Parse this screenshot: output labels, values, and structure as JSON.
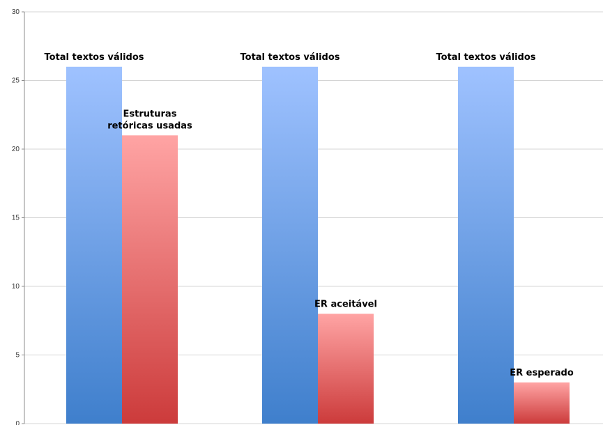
{
  "chart_data": {
    "type": "bar",
    "groups": [
      {
        "bars": [
          {
            "label": "Total textos válidos",
            "value": 26,
            "series": "total"
          },
          {
            "label": "Estruturas retóricas usadas",
            "value": 21,
            "series": "er"
          }
        ]
      },
      {
        "bars": [
          {
            "label": "Total textos válidos",
            "value": 26,
            "series": "total"
          },
          {
            "label": "ER aceitável",
            "value": 8,
            "series": "er"
          }
        ]
      },
      {
        "bars": [
          {
            "label": "Total textos válidos",
            "value": 26,
            "series": "total"
          },
          {
            "label": "ER esperado",
            "value": 3,
            "series": "er"
          }
        ]
      }
    ],
    "yticks": [
      "0",
      "5",
      "10",
      "15",
      "20",
      "25",
      "30"
    ],
    "ylim": [
      0,
      30
    ],
    "grid": true,
    "legend": "none",
    "colors": {
      "total_top": "#9fc2ff",
      "total_bottom": "#3f7fcc",
      "er_top": "#ffa4a4",
      "er_bottom": "#cc3b3b",
      "grid": "#d4d4d4",
      "axis": "#8c8c8c"
    }
  }
}
